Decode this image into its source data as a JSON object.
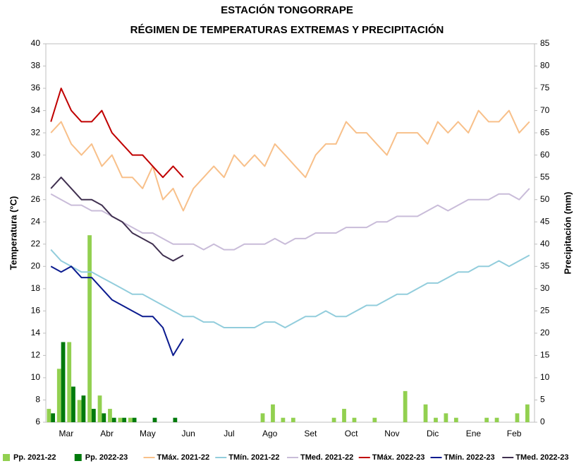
{
  "chart_data": {
    "type": "line",
    "title": "ESTACIÓN TONGORRAPE",
    "subtitle": "RÉGIMEN DE TEMPERATURAS EXTREMAS Y PRECIPITACIÓN",
    "y_label": "Temperatura (°C)",
    "y2_label": "Precipitación (mm)",
    "categories": [
      null,
      "Mar",
      null,
      null,
      null,
      "Abr",
      null,
      null,
      null,
      "May",
      null,
      null,
      null,
      "Jun",
      null,
      null,
      null,
      "Jul",
      null,
      null,
      null,
      "Ago",
      null,
      null,
      null,
      "Set",
      null,
      null,
      null,
      "Oct",
      null,
      null,
      null,
      "Nov",
      null,
      null,
      null,
      "Dic",
      null,
      null,
      null,
      "Ene",
      null,
      null,
      null,
      "Feb",
      null,
      null
    ],
    "ylim": [
      6,
      40
    ],
    "yticks": [
      6,
      8,
      10,
      12,
      14,
      16,
      18,
      20,
      22,
      24,
      26,
      28,
      30,
      32,
      34,
      36,
      38,
      40
    ],
    "y2lim": [
      0,
      85
    ],
    "y2ticks": [
      0,
      5,
      10,
      15,
      20,
      25,
      30,
      35,
      40,
      45,
      50,
      55,
      60,
      65,
      70,
      75,
      80,
      85
    ],
    "grid": false,
    "legend": "bottom",
    "series": [
      {
        "name": "Pp. 2021-22",
        "type": "bar",
        "axis": "y2",
        "color": "#92d050",
        "values": [
          3,
          12,
          18,
          5,
          42,
          6,
          3,
          1,
          1,
          0,
          0,
          0,
          0,
          0,
          0,
          0,
          0,
          0,
          0,
          0,
          0,
          2,
          4,
          1,
          1,
          0,
          0,
          0,
          1,
          3,
          1,
          0,
          1,
          0,
          0,
          7,
          0,
          4,
          1,
          2,
          1,
          0,
          0,
          1,
          1,
          0,
          2,
          4
        ]
      },
      {
        "name": "Pp. 2022-23",
        "type": "bar",
        "axis": "y2",
        "color": "#007a0c",
        "values": [
          2,
          18,
          8,
          6,
          3,
          2,
          1,
          1,
          1,
          0,
          1,
          0,
          1,
          0,
          null,
          null,
          null,
          null,
          null,
          null,
          null,
          null,
          null,
          null,
          null,
          null,
          null,
          null,
          null,
          null,
          null,
          null,
          null,
          null,
          null,
          null,
          null,
          null,
          null,
          null,
          null,
          null,
          null,
          null,
          null,
          null,
          null,
          null
        ]
      },
      {
        "name": "TMáx. 2021-22",
        "type": "line",
        "color": "#f8c08a",
        "values": [
          32,
          33,
          31,
          30,
          31,
          29,
          30,
          28,
          28,
          27,
          29,
          26,
          27,
          25,
          27,
          28,
          29,
          28,
          30,
          29,
          30,
          29,
          31,
          30,
          29,
          28,
          30,
          31,
          31,
          33,
          32,
          32,
          31,
          30,
          32,
          32,
          32,
          31,
          33,
          32,
          33,
          32,
          34,
          33,
          33,
          34,
          32,
          33
        ]
      },
      {
        "name": "TMín. 2021-22",
        "type": "line",
        "color": "#92cddc",
        "values": [
          21.5,
          20.5,
          20,
          19.5,
          19.5,
          19,
          18.5,
          18,
          17.5,
          17.5,
          17,
          16.5,
          16,
          15.5,
          15.5,
          15,
          15,
          14.5,
          14.5,
          14.5,
          14.5,
          15,
          15,
          14.5,
          15,
          15.5,
          15.5,
          16,
          15.5,
          15.5,
          16,
          16.5,
          16.5,
          17,
          17.5,
          17.5,
          18,
          18.5,
          18.5,
          19,
          19.5,
          19.5,
          20,
          20,
          20.5,
          20,
          20.5,
          21
        ]
      },
      {
        "name": "TMed. 2021-22",
        "type": "line",
        "color": "#c9bcd9",
        "values": [
          26.5,
          26,
          25.5,
          25.5,
          25,
          25,
          24.5,
          24,
          23.5,
          23,
          23,
          22.5,
          22,
          22,
          22,
          21.5,
          22,
          21.5,
          21.5,
          22,
          22,
          22,
          22.5,
          22,
          22.5,
          22.5,
          23,
          23,
          23,
          23.5,
          23.5,
          23.5,
          24,
          24,
          24.5,
          24.5,
          24.5,
          25,
          25.5,
          25,
          25.5,
          26,
          26,
          26,
          26.5,
          26.5,
          26,
          27
        ]
      },
      {
        "name": "TMáx. 2022-23",
        "type": "line",
        "color": "#c00000",
        "values": [
          33,
          36,
          34,
          33,
          33,
          34,
          32,
          31,
          30,
          30,
          29,
          28,
          29,
          28,
          null,
          null,
          null,
          null,
          null,
          null,
          null,
          null,
          null,
          null,
          null,
          null,
          null,
          null,
          null,
          null,
          null,
          null,
          null,
          null,
          null,
          null,
          null,
          null,
          null,
          null,
          null,
          null,
          null,
          null,
          null,
          null,
          null,
          null
        ]
      },
      {
        "name": "TMín. 2022-23",
        "type": "line",
        "color": "#0b1b8f",
        "values": [
          20,
          19.5,
          20,
          19,
          19,
          18,
          17,
          16.5,
          16,
          15.5,
          15.5,
          14.5,
          12,
          13.5,
          null,
          null,
          null,
          null,
          null,
          null,
          null,
          null,
          null,
          null,
          null,
          null,
          null,
          null,
          null,
          null,
          null,
          null,
          null,
          null,
          null,
          null,
          null,
          null,
          null,
          null,
          null,
          null,
          null,
          null,
          null,
          null,
          null,
          null
        ]
      },
      {
        "name": "TMed. 2022-23",
        "type": "line",
        "color": "#403050",
        "values": [
          27,
          28,
          27,
          26,
          26,
          25.5,
          24.5,
          24,
          23,
          22.5,
          22,
          21,
          20.5,
          21,
          null,
          null,
          null,
          null,
          null,
          null,
          null,
          null,
          null,
          null,
          null,
          null,
          null,
          null,
          null,
          null,
          null,
          null,
          null,
          null,
          null,
          null,
          null,
          null,
          null,
          null,
          null,
          null,
          null,
          null,
          null,
          null,
          null,
          null
        ]
      }
    ]
  }
}
